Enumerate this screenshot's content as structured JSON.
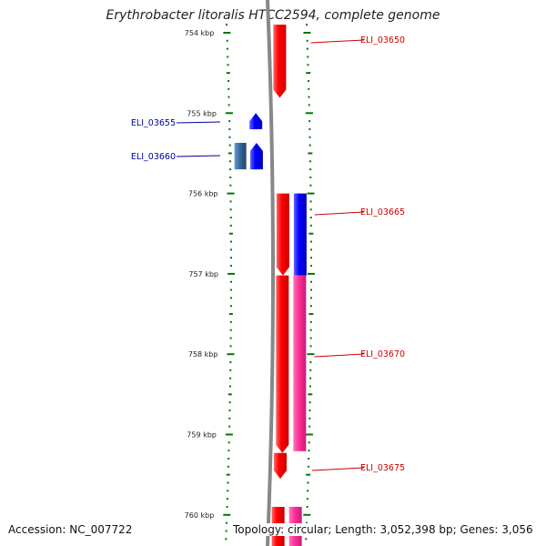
{
  "title": "Erythrobacter litoralis HTCC2594, complete genome",
  "footer": {
    "accession": "Accession: NC_007722",
    "summary": "Topology: circular; Length: 3,052,398 bp; Genes: 3,056"
  },
  "scale": {
    "unit": "kbp",
    "labels": [
      "754 kbp",
      "755 kbp",
      "756 kbp",
      "757 kbp",
      "758 kbp",
      "759 kbp",
      "760 kbp"
    ],
    "positions_kbp": [
      754,
      755,
      756,
      757,
      758,
      759,
      760
    ]
  },
  "genes": [
    {
      "id": "ELI_03650",
      "label": "ELI_03650",
      "strand": "forward",
      "start_kbp": 753.9,
      "end_kbp": 754.81,
      "color": "#ff0000",
      "label_color": "#cc0000"
    },
    {
      "id": "ELI_03655",
      "label": "ELI_03655",
      "strand": "reverse",
      "start_kbp": 755.0,
      "end_kbp": 755.2,
      "color": "#0000ff",
      "label_color": "#000099"
    },
    {
      "id": "ELI_03660",
      "label": "ELI_03660",
      "strand": "reverse",
      "start_kbp": 755.37,
      "end_kbp": 755.7,
      "color": "#0000ff",
      "label_color": "#000099"
    },
    {
      "id": "ELI_03665",
      "label": "ELI_03665",
      "strand": "forward",
      "start_kbp": 756.0,
      "end_kbp": 757.02,
      "color": "#ff0000",
      "label_color": "#cc0000"
    },
    {
      "id": "ELI_03670",
      "label": "ELI_03670",
      "strand": "forward",
      "start_kbp": 757.02,
      "end_kbp": 759.23,
      "color": "#ff0000",
      "label_color": "#cc0000"
    },
    {
      "id": "ELI_03675",
      "label": "ELI_03675",
      "strand": "forward",
      "start_kbp": 759.23,
      "end_kbp": 759.55,
      "color": "#ff0000",
      "label_color": "#cc0000"
    },
    {
      "id": "next-gene",
      "label": "",
      "strand": "forward",
      "start_kbp": 759.9,
      "end_kbp": 760.5,
      "color": "#ff0000",
      "label_color": "#cc0000"
    }
  ],
  "cds_track": [
    {
      "start_kbp": 756.0,
      "end_kbp": 757.02,
      "color": "#0000ff"
    },
    {
      "start_kbp": 757.02,
      "end_kbp": 759.23,
      "color": "#ff3399"
    },
    {
      "start_kbp": 759.9,
      "end_kbp": 760.5,
      "color": "#ff3399"
    }
  ],
  "other_feature": {
    "start_kbp": 755.37,
    "end_kbp": 755.7,
    "color": "#336699"
  },
  "colors": {
    "backbone": "#888888",
    "ticks": "#007700",
    "forward": "#ff0000",
    "reverse": "#0000ff",
    "cds": "#ff3399"
  }
}
